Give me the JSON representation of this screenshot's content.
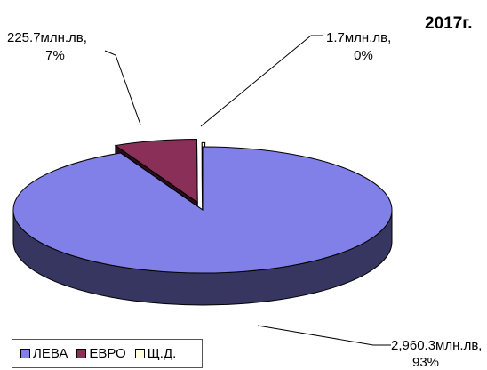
{
  "chart_data": {
    "type": "pie",
    "title": "2017г.",
    "slices": [
      {
        "name": "ЛЕВА",
        "value": 2960.3,
        "value_label": "2,960.3млн.лв,",
        "percent_label": "93%",
        "color": "#8080e8"
      },
      {
        "name": "ЕВРО",
        "value": 225.7,
        "value_label": "225.7млн.лв,",
        "percent_label": "7%",
        "color": "#8a3058"
      },
      {
        "name": "Щ.Д.",
        "value": 1.7,
        "value_label": "1.7млн.лв,",
        "percent_label": "0%",
        "color": "#ffffe0"
      }
    ],
    "legend_position": "bottom-left"
  }
}
